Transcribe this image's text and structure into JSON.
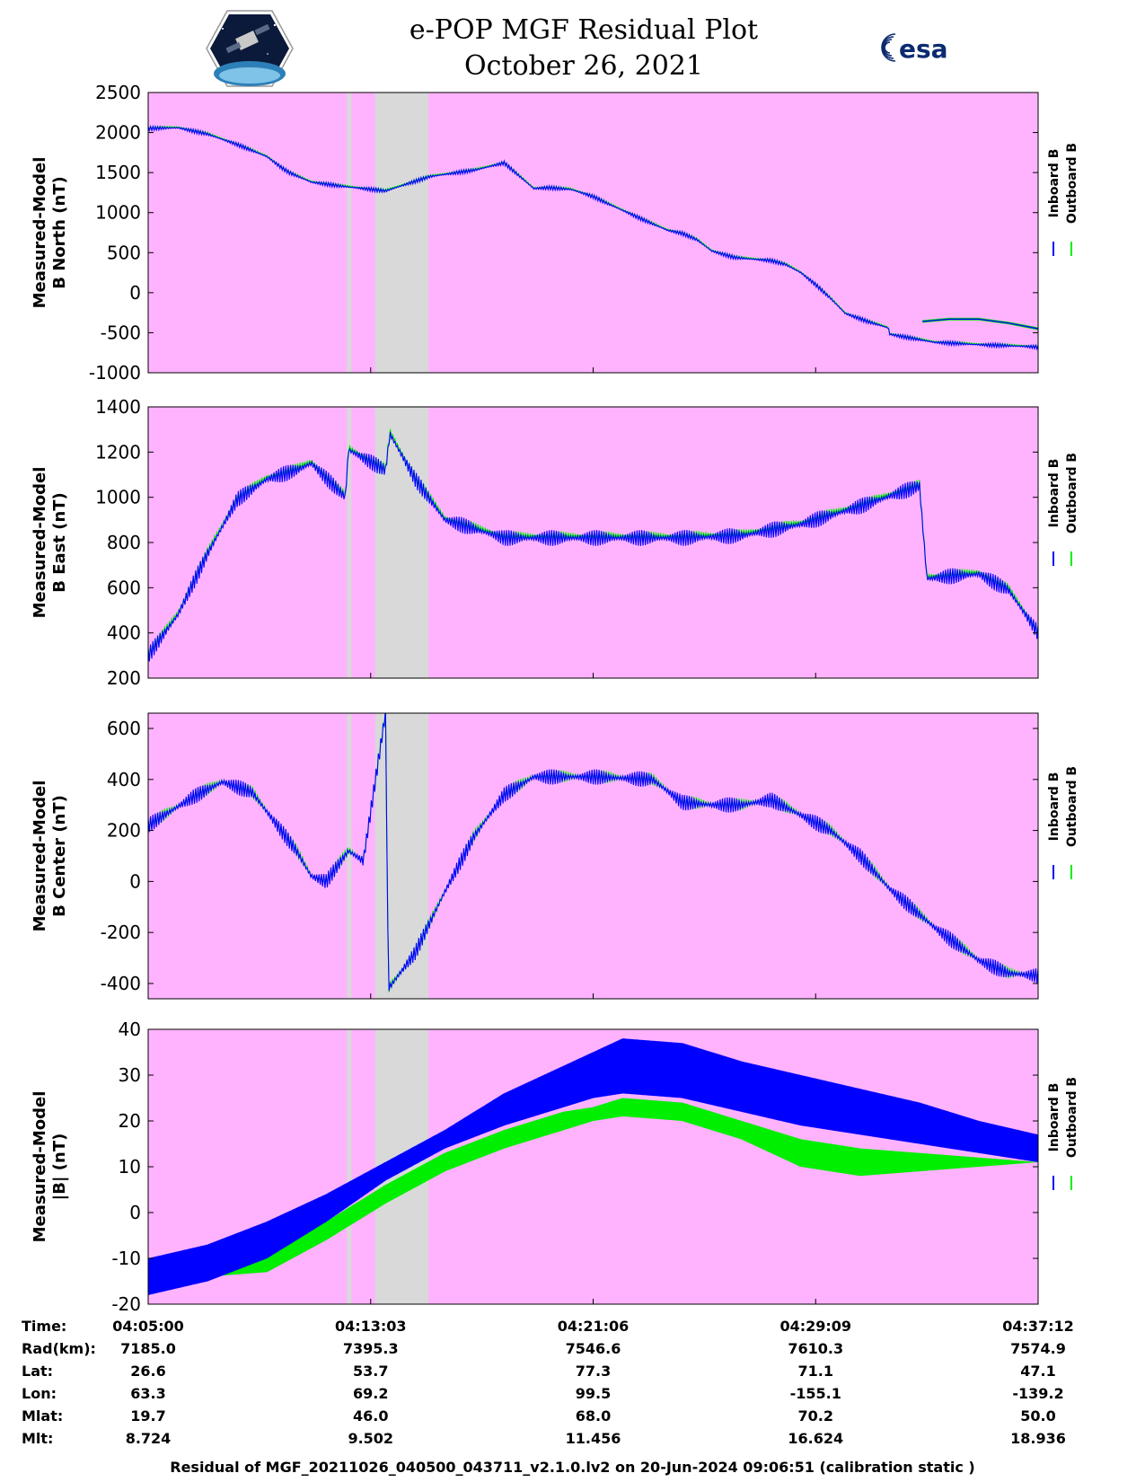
{
  "header": {
    "title_line1": "e-POP MGF Residual Plot",
    "title_line2": "October 26, 2021",
    "logo_left": "CASSIOPE",
    "logo_right": "esa"
  },
  "colors": {
    "background": "#ffb3ff",
    "gap": "#d9d9d9",
    "inboard": "#0000ff",
    "outboard": "#00ee00"
  },
  "legend": {
    "inboard": "Inboard B",
    "outboard": "Outboard B"
  },
  "chart_data": [
    {
      "type": "line",
      "ylabel_line1": "Measured-Model",
      "ylabel_line2": "B North (nT)",
      "ylim": [
        -1000,
        2500
      ],
      "yticks": [
        2500,
        2000,
        1500,
        1000,
        500,
        0,
        -500,
        -1000
      ],
      "x_minutes": [
        0,
        2,
        4,
        6,
        8,
        9,
        9.5,
        10.5,
        11,
        13,
        16,
        19,
        22,
        24,
        26,
        27,
        28.5,
        30,
        31,
        32.2,
        33.5,
        35,
        36,
        37,
        38,
        39.5,
        40,
        42,
        43,
        44,
        45,
        46,
        47,
        48.5,
        49.9,
        50,
        53,
        56,
        59,
        60
      ],
      "series": [
        {
          "name": "Inboard B",
          "ripple": 25,
          "values": [
            2050,
            2060,
            1980,
            1850,
            1700,
            1560,
            1500,
            1420,
            1380,
            1330,
            1270,
            1450,
            1530,
            1620,
            1300,
            1310,
            1290,
            1200,
            1110,
            1010,
            900,
            780,
            740,
            660,
            520,
            440,
            430,
            400,
            350,
            250,
            100,
            -70,
            -260,
            -360,
            -440,
            -520,
            -620,
            -650,
            -670,
            -680
          ]
        },
        {
          "name": "Outboard B",
          "ripple": 15,
          "values": [
            2060,
            2070,
            1990,
            1860,
            1710,
            1570,
            1510,
            1430,
            1390,
            1340,
            1280,
            1460,
            1540,
            1630,
            1310,
            1320,
            1300,
            1210,
            1120,
            1020,
            910,
            790,
            750,
            670,
            530,
            450,
            440,
            410,
            360,
            260,
            110,
            -60,
            -250,
            -350,
            -430,
            -510,
            -610,
            -640,
            -660,
            -670
          ]
        }
      ],
      "post_jump_x": [
        52.2,
        54,
        56,
        58,
        60
      ],
      "post_jump_values": [
        -360,
        -330,
        -330,
        -380,
        -450
      ]
    },
    {
      "type": "line",
      "ylabel_line1": "Measured-Model",
      "ylabel_line2": "B East (nT)",
      "ylim": [
        200,
        1400
      ],
      "yticks": [
        1400,
        1200,
        1000,
        800,
        600,
        400,
        200
      ],
      "x_minutes": [
        0,
        2,
        4,
        6,
        8,
        10,
        11,
        13.3,
        13.5,
        16,
        16.3,
        18,
        20,
        24,
        28,
        32,
        36,
        40,
        44,
        48,
        52,
        52.5,
        54,
        56,
        58,
        60
      ],
      "series": [
        {
          "name": "Inboard B",
          "ripple": 35,
          "values": [
            300,
            480,
            750,
            990,
            1080,
            1120,
            1150,
            1000,
            1210,
            1120,
            1280,
            1080,
            900,
            820,
            820,
            820,
            820,
            830,
            880,
            960,
            1050,
            640,
            650,
            660,
            590,
            400
          ]
        },
        {
          "name": "Outboard B",
          "ripple": 20,
          "values": [
            310,
            490,
            760,
            1000,
            1090,
            1130,
            1160,
            1010,
            1220,
            1130,
            1290,
            1090,
            910,
            830,
            830,
            830,
            830,
            840,
            890,
            970,
            1060,
            650,
            660,
            670,
            600,
            410
          ]
        }
      ]
    },
    {
      "type": "line",
      "ylabel_line1": "Measured-Model",
      "ylabel_line2": "B Center (nT)",
      "ylim": [
        -460,
        660
      ],
      "yticks": [
        600,
        400,
        200,
        0,
        -200,
        -400
      ],
      "x_minutes": [
        0,
        3,
        5,
        7,
        10,
        11,
        12,
        13.5,
        14.5,
        16,
        16.2,
        18,
        20,
        22,
        24,
        26,
        28,
        30,
        34,
        36,
        38,
        40,
        42,
        44,
        46,
        48,
        50,
        52,
        53,
        56,
        58,
        60
      ],
      "series": [
        {
          "name": "Inboard B",
          "ripple": 30,
          "values": [
            220,
            330,
            390,
            350,
            120,
            20,
            0,
            120,
            80,
            660,
            -420,
            -280,
            -40,
            180,
            340,
            410,
            410,
            410,
            400,
            310,
            300,
            300,
            320,
            260,
            200,
            100,
            -30,
            -130,
            -180,
            -310,
            -360,
            -370
          ]
        },
        {
          "name": "Outboard B",
          "ripple": 25,
          "values": [
            222,
            332,
            392,
            352,
            122,
            22,
            2,
            122,
            82,
            660,
            -418,
            -278,
            -38,
            182,
            342,
            412,
            412,
            412,
            402,
            312,
            302,
            302,
            322,
            262,
            202,
            102,
            -28,
            -128,
            -178,
            -308,
            -358,
            -368
          ]
        }
      ]
    },
    {
      "type": "line",
      "ylabel_line1": "Measured-Model",
      "ylabel_line2": "|B| (nT)",
      "ylim": [
        -20,
        40
      ],
      "yticks": [
        40,
        30,
        20,
        10,
        0,
        -10,
        -20
      ],
      "x_minutes": [
        0,
        4,
        8,
        12,
        16,
        20,
        24,
        28,
        30,
        32,
        36,
        40,
        44,
        48,
        52,
        56,
        60
      ],
      "series": [
        {
          "name": "Inboard B",
          "upper": [
            -10,
            -7,
            -2,
            4,
            11,
            18,
            26,
            32,
            35,
            38,
            37,
            33,
            30,
            27,
            24,
            20,
            17
          ],
          "lower": [
            -18,
            -15,
            -10,
            -2,
            7,
            14,
            19,
            23,
            25,
            26,
            25,
            22,
            19,
            17,
            15,
            13,
            11
          ]
        },
        {
          "name": "Outboard B",
          "upper": [
            -13,
            -11,
            -8,
            -2,
            6,
            13,
            18,
            22,
            23,
            25,
            24,
            20,
            16,
            14,
            13,
            12,
            11
          ],
          "lower": [
            -15,
            -14,
            -13,
            -6,
            2,
            9,
            14,
            18,
            20,
            21,
            20,
            16,
            10,
            8,
            9,
            10,
            11
          ]
        }
      ]
    }
  ],
  "gaps_minutes": [
    [
      13.4,
      13.7
    ],
    [
      15.3,
      18.9
    ]
  ],
  "x_axis": {
    "start_minute": 0,
    "end_minute": 60,
    "tick_minutes": [
      0,
      15,
      30,
      45,
      60
    ]
  },
  "info_table": {
    "row_labels": [
      "Time:",
      "Rad(km):",
      "Lat:",
      "Lon:",
      "Mlat:",
      "Mlt:"
    ],
    "columns": [
      [
        "04:05:00",
        "7185.0",
        "26.6",
        "63.3",
        "19.7",
        "8.724"
      ],
      [
        "04:13:03",
        "7395.3",
        "53.7",
        "69.2",
        "46.0",
        "9.502"
      ],
      [
        "04:21:06",
        "7546.6",
        "77.3",
        "99.5",
        "68.0",
        "11.456"
      ],
      [
        "04:29:09",
        "7610.3",
        "71.1",
        "-155.1",
        "70.2",
        "16.624"
      ],
      [
        "04:37:12",
        "7574.9",
        "47.1",
        "-139.2",
        "50.0",
        "18.936"
      ]
    ]
  },
  "footer": "Residual of MGF_20211026_040500_043711_v2.1.0.lv2 on 20-Jun-2024 09:06:51 (calibration static )"
}
